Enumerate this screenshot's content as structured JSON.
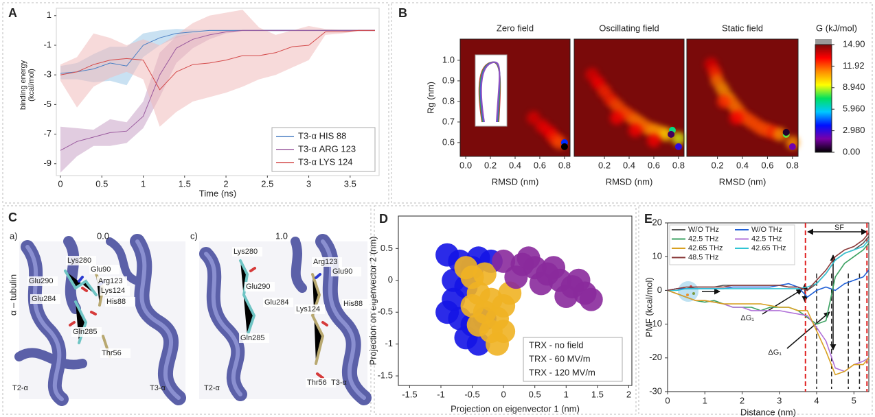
{
  "chart_data": [
    {
      "label": "A",
      "type": "line",
      "xlabel": "Time (ns)",
      "ylabel": [
        "binding energy",
        "(kcal/mol)"
      ],
      "x": [
        0,
        0.2,
        0.4,
        0.6,
        0.8,
        1,
        1.2,
        1.4,
        1.6,
        1.8,
        2,
        2.2,
        2.4,
        2.6,
        2.8,
        3,
        3.2,
        3.4,
        3.6,
        3.8
      ],
      "xlim": [
        -0.05,
        3.85
      ],
      "xticks": [
        0,
        0.5,
        1,
        1.5,
        2,
        2.5,
        3,
        3.5
      ],
      "ylim": [
        -9.8,
        1.5
      ],
      "yticks": [
        1,
        -1,
        -3,
        -5,
        -7,
        -9
      ],
      "legend": "lower right",
      "series": [
        {
          "name": "T3-α HIS  88",
          "color": "#4a7fc4",
          "band_color": "#9cc8e8",
          "values": [
            -2.9,
            -2.8,
            -2.6,
            -2.2,
            -2.4,
            -1.0,
            -0.5,
            -0.2,
            -0.1,
            0,
            0,
            0,
            0,
            0,
            0,
            0,
            0,
            0,
            0,
            0
          ],
          "upper": [
            -2.4,
            -2.2,
            -1.6,
            -1.1,
            -1.1,
            -0.2,
            0,
            0.1,
            0.05,
            0.05,
            0.05,
            0.05,
            0.05,
            0.05,
            0.05,
            0.05,
            0.05,
            0.05,
            0.05,
            0.05
          ],
          "lower": [
            -3.3,
            -3.3,
            -3.5,
            -3.4,
            -3.7,
            -1.8,
            -1.0,
            -0.5,
            -0.2,
            -0.05,
            -0.05,
            -0.05,
            -0.05,
            -0.05,
            -0.05,
            -0.05,
            -0.05,
            -0.05,
            -0.05,
            -0.05
          ]
        },
        {
          "name": "T3-α ARG 123",
          "color": "#9a5a9e",
          "band_color": "#c9a3c6",
          "values": [
            -8.1,
            -7.5,
            -7.2,
            -6.9,
            -6.8,
            -5.8,
            -3.0,
            -1.2,
            -0.6,
            -0.3,
            -0.1,
            0,
            0,
            0,
            0,
            0,
            0,
            0,
            0,
            0
          ],
          "upper": [
            -6.5,
            -6.6,
            -6.7,
            -6.0,
            -6.2,
            -4.8,
            -1.5,
            -0.4,
            -0.2,
            -0.1,
            0,
            0.05,
            0.05,
            0.05,
            0.05,
            0.05,
            0.05,
            0.05,
            0.05,
            0.05
          ],
          "lower": [
            -9.6,
            -8.5,
            -7.8,
            -7.8,
            -7.6,
            -6.6,
            -4.5,
            -2.2,
            -1.2,
            -0.6,
            -0.2,
            -0.05,
            -0.05,
            -0.05,
            -0.05,
            -0.05,
            -0.05,
            -0.05,
            -0.05,
            -0.05
          ]
        },
        {
          "name": "T3-α LYS 124",
          "color": "#d44a4a",
          "band_color": "#f0bcbc",
          "values": [
            -3.0,
            -2.8,
            -2.3,
            -2.0,
            -1.9,
            -2.0,
            -4.0,
            -2.8,
            -2.3,
            -2.2,
            -2.0,
            -1.7,
            -1.7,
            -1.5,
            -1.1,
            -1.0,
            -0.1,
            -0.1,
            0,
            0
          ],
          "upper": [
            -2.3,
            -1.8,
            -0.2,
            -0.5,
            -1.0,
            -0.6,
            -1.0,
            -0.3,
            0.5,
            1.0,
            1.2,
            1.4,
            0.2,
            -0.3,
            0,
            0.3,
            0.1,
            0.05,
            0.05,
            0.05
          ],
          "lower": [
            -3.4,
            -5.2,
            -3.8,
            -3.2,
            -2.8,
            -3.3,
            -6.5,
            -5.5,
            -4.8,
            -4.5,
            -4.2,
            -3.8,
            -3.3,
            -3.0,
            -2.5,
            -2.0,
            -0.3,
            -0.2,
            -0.05,
            -0.05
          ]
        }
      ]
    },
    {
      "label": "B",
      "type": "density",
      "ylabel": "Rg (nm)",
      "xlim": [
        -0.045,
        0.845
      ],
      "ylim": [
        0.533,
        1.103
      ],
      "yticks": [
        0.6,
        0.7,
        0.8,
        0.9,
        {
          "value": 1,
          "label": "1.0"
        }
      ],
      "subplots": [
        {
          "title": "Zero field",
          "xlabel": "RMSD (nm)",
          "xticks": [
            {
              "value": 0,
              "label": "0.0"
            },
            0.2,
            0.4,
            0.6,
            0.8
          ],
          "x": [
            0.55,
            0.62,
            0.68,
            0.72,
            0.76,
            0.8,
            0.8
          ],
          "y": [
            0.72,
            0.68,
            0.65,
            0.62,
            0.6,
            0.6,
            0.58
          ],
          "values": [
            13.5,
            13.2,
            13,
            12.5,
            12,
            4,
            0
          ]
        },
        {
          "title": "Oscillating field",
          "xlabel": "RMSD (nm)",
          "xticks": [
            0.2,
            0.4,
            0.6,
            0.8
          ],
          "x": [
            0.1,
            0.15,
            0.2,
            0.25,
            0.3,
            0.35,
            0.4,
            0.45,
            0.5,
            0.55,
            0.6,
            0.65,
            0.7,
            0.75,
            0.8,
            0.3,
            0.45,
            0.6,
            0.74,
            0.8
          ],
          "y": [
            0.93,
            0.89,
            0.85,
            0.81,
            0.78,
            0.75,
            0.73,
            0.71,
            0.69,
            0.67,
            0.66,
            0.65,
            0.64,
            0.66,
            0.62,
            0.72,
            0.66,
            0.61,
            0.64,
            0.58
          ],
          "values": [
            13.5,
            13,
            12.5,
            12.5,
            12,
            12,
            12,
            11.5,
            11.5,
            11.5,
            11,
            11,
            10,
            7,
            9,
            13,
            13,
            13,
            1,
            3
          ]
        },
        {
          "title": "Static field",
          "xlabel": "RMSD (nm)",
          "xticks": [
            0.2,
            0.4,
            0.6,
            0.8
          ],
          "x": [
            0.15,
            0.18,
            0.2,
            0.24,
            0.28,
            0.32,
            0.36,
            0.4,
            0.45,
            0.5,
            0.55,
            0.6,
            0.65,
            0.7,
            0.75,
            0.8,
            0.25,
            0.35,
            0.75,
            0.8
          ],
          "y": [
            0.98,
            0.94,
            0.9,
            0.86,
            0.82,
            0.79,
            0.76,
            0.73,
            0.71,
            0.69,
            0.67,
            0.66,
            0.65,
            0.64,
            0.64,
            0.6,
            0.8,
            0.72,
            0.65,
            0.58
          ],
          "values": [
            13.5,
            12.5,
            11.5,
            11,
            11,
            11.5,
            11.5,
            12,
            12,
            12,
            12,
            12,
            12.5,
            11,
            8,
            11,
            12.5,
            13,
            0.5,
            2
          ]
        }
      ],
      "colorbar": {
        "title": "G (kJ/mol)",
        "ticks": [
          {
            "value": 0,
            "label": "0.00"
          },
          {
            "value": 2.98,
            "label": "2.980"
          },
          {
            "value": 5.96,
            "label": "5.960"
          },
          {
            "value": 8.94,
            "label": "8.940"
          },
          11.92,
          {
            "value": 14.9,
            "label": "14.90"
          }
        ],
        "colors": [
          "#000000",
          "#7a00a8",
          "#0010ff",
          "#00c8ff",
          "#00e060",
          "#ffff00",
          "#ff8c00",
          "#ff0000",
          "#7a0a0a"
        ],
        "over_color": "#9a9a9a"
      }
    },
    {
      "label": "D",
      "type": "scatter",
      "xlabel": "Projection on eigenvector 1 (nm)",
      "ylabel": "Projection on eigenvector 2 (nm)",
      "xlim": [
        -1.68,
        2.05
      ],
      "xticks": [
        -1.5,
        -1,
        -0.5,
        0,
        0.5,
        1,
        1.5,
        2
      ],
      "ylim": [
        -1.65,
        1.01
      ],
      "yticks": [
        0.5,
        0,
        -0.5,
        -1,
        -1.5
      ],
      "legend": "lower right",
      "series": [
        {
          "name": "TRX - no field",
          "color": "#1414e6",
          "x": [
            -0.9,
            -0.7,
            -0.5,
            -0.8,
            -0.6,
            -0.8,
            -0.7,
            -0.5,
            -0.6,
            -0.4,
            -0.3,
            -0.9,
            -0.4,
            -0.2
          ],
          "values": [
            0.4,
            0.3,
            0.2,
            0,
            -0.1,
            -0.3,
            -0.6,
            -0.7,
            -0.9,
            -1.0,
            -0.6,
            -0.5,
            0.35,
            0.3
          ]
        },
        {
          "name": "TRX - 60  MV/m",
          "color": "#f0b323",
          "x": [
            -0.5,
            -0.3,
            -0.4,
            -0.2,
            -0.3,
            -0.1,
            0,
            -0.5,
            -0.2,
            0,
            -0.1,
            -0.4,
            0.1,
            -0.6
          ],
          "values": [
            0.05,
            0.1,
            -0.2,
            -0.3,
            -0.5,
            -0.6,
            -0.4,
            -0.4,
            -0.8,
            -0.8,
            -1.0,
            -0.7,
            -0.2,
            0.2
          ]
        },
        {
          "name": "TRX - 120 MV/m",
          "color": "#8a2a9c",
          "x": [
            0,
            0.3,
            0.5,
            0.7,
            0.9,
            1.1,
            1.3,
            1.4,
            0.2,
            0.6,
            1.0,
            0.8,
            0.4,
            1.2
          ],
          "values": [
            0.3,
            0.25,
            0.2,
            0.1,
            0,
            -0.1,
            -0.2,
            -0.3,
            0.05,
            -0.05,
            -0.25,
            0.2,
            0.35,
            0
          ]
        }
      ]
    },
    {
      "label": "E",
      "type": "line",
      "xlabel": "Distance (nm)",
      "ylabel": "PMF (kcal/mol)",
      "x": [
        0,
        0.25,
        0.5,
        0.75,
        1,
        1.25,
        1.5,
        1.75,
        2,
        2.25,
        2.5,
        2.75,
        3,
        3.25,
        3.5,
        3.75,
        4,
        4.25,
        4.5,
        4.75,
        5,
        5.25,
        5.4
      ],
      "xlim": [
        0,
        5.4
      ],
      "xticks": [
        0,
        1,
        2,
        3,
        4,
        5
      ],
      "ylim": [
        -30,
        20
      ],
      "yticks": [
        20,
        10,
        0,
        -10,
        -20,
        -30
      ],
      "legend": "upper left",
      "sf_lines": [
        3.7,
        5.35
      ],
      "sf_label": "SF",
      "dividers": [
        4,
        4.4,
        4.85,
        5.15
      ],
      "annotations": [
        "ΔG₁",
        "ΔG₁"
      ],
      "series": [
        {
          "name": "W/O THz",
          "color": "#555555",
          "values": [
            0,
            0.5,
            0.5,
            1,
            1,
            1,
            1.5,
            1.5,
            1.5,
            1.5,
            1.5,
            1.5,
            1.5,
            1,
            1,
            0,
            2,
            5,
            9,
            11,
            12,
            14,
            16
          ]
        },
        {
          "name": "W/O THz",
          "color": "#1f5fd6",
          "values": [
            0,
            0.5,
            0.5,
            0.5,
            0.5,
            0.5,
            0.5,
            1,
            1,
            1,
            1,
            1,
            1.5,
            2,
            1,
            -2,
            0,
            1,
            0,
            2,
            3,
            4,
            6
          ]
        },
        {
          "name": "42.5 THz",
          "color": "#3aa060",
          "values": [
            0,
            -1,
            -2,
            -3,
            -3.5,
            -3,
            -4,
            -5,
            -5,
            -5,
            -6,
            -5,
            -5,
            -5,
            -6,
            -8,
            -10,
            -9,
            4,
            8,
            10,
            12,
            14
          ]
        },
        {
          "name": "42.5 THz",
          "color": "#b070d8",
          "values": [
            0,
            -1,
            -2,
            -3,
            -3,
            -3.5,
            -4,
            -5,
            -5,
            -6,
            -6,
            -6,
            -6,
            -6.5,
            -7,
            -7.5,
            -11,
            -15,
            -23,
            -24,
            -22,
            -21,
            -20
          ]
        },
        {
          "name": "42.65 THz",
          "color": "#d8a020",
          "values": [
            0,
            -1,
            -2,
            -3,
            -3,
            -3.5,
            -4,
            -4,
            -4,
            -4,
            -4,
            -4.5,
            -5,
            -5,
            -6,
            -6,
            -12,
            -18,
            -25,
            -24,
            -22,
            -22,
            -20
          ]
        },
        {
          "name": "42.65 THz",
          "color": "#30c4d4",
          "values": [
            0,
            0,
            0.5,
            0.5,
            0.5,
            0.5,
            0.5,
            0.5,
            0.5,
            0.5,
            0.5,
            0.5,
            0.5,
            0.5,
            0.5,
            1,
            2,
            5,
            9,
            11,
            12,
            13,
            15
          ]
        },
        {
          "name": "48.5 THz",
          "color": "#8a3a3a",
          "values": [
            0,
            0.5,
            1,
            1,
            1,
            1,
            1,
            1.5,
            1.5,
            1.5,
            1.5,
            1.5,
            1.5,
            1,
            1,
            0,
            3,
            6,
            10,
            12,
            13,
            15,
            17
          ]
        }
      ]
    }
  ],
  "panel_c": {
    "label": "C",
    "side_label": "α – tubulin",
    "images": [
      {
        "tag": "a)",
        "title": "0.0",
        "labels": [
          "Lys280",
          "Glu90",
          "Arg123",
          "Glu290",
          "Lys124",
          "His88",
          "Glu284",
          "Gln285",
          "Thr56",
          "T2-α",
          "T3-α"
        ]
      },
      {
        "tag": "c)",
        "title": "1.0",
        "labels": [
          "Lys280",
          "Glu290",
          "Arg123",
          "Glu90",
          "His88",
          "Glu284",
          "Lys124",
          "Gln285",
          "Thr56",
          "T3-α",
          "T2-α"
        ]
      }
    ]
  }
}
